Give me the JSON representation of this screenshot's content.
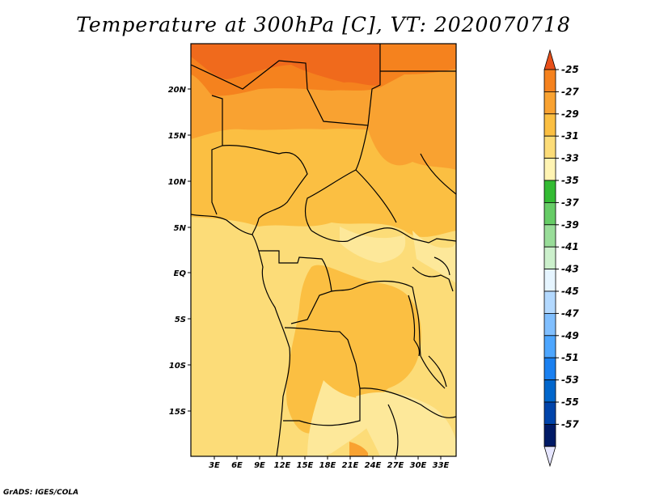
{
  "title": "Temperature at 300hPa [C], VT: 2020070718",
  "credit": "GrADS: IGES/COLA",
  "map": {
    "lat_ticks": [
      "20N",
      "15N",
      "10N",
      "5N",
      "EQ",
      "5S",
      "10S",
      "15S"
    ],
    "lon_ticks": [
      "3E",
      "6E",
      "9E",
      "12E",
      "15E",
      "18E",
      "21E",
      "24E",
      "27E",
      "30E",
      "33E"
    ]
  },
  "colorbar": {
    "labels": [
      "-25",
      "-27",
      "-29",
      "-31",
      "-33",
      "-35",
      "-37",
      "-39",
      "-41",
      "-43",
      "-45",
      "-47",
      "-49",
      "-51",
      "-53",
      "-55",
      "-57"
    ],
    "colors": [
      "#e8501a",
      "#f5821e",
      "#f9a231",
      "#fbbf42",
      "#fcdc78",
      "#fff4b3",
      "#33bb33",
      "#66cc66",
      "#99dd99",
      "#ccf0cc",
      "#e6f5ff",
      "#b3d9ff",
      "#80bfff",
      "#4da6ff",
      "#1a80f0",
      "#0066cc",
      "#0044aa",
      "#001a66",
      "#e6e6ff"
    ]
  }
}
